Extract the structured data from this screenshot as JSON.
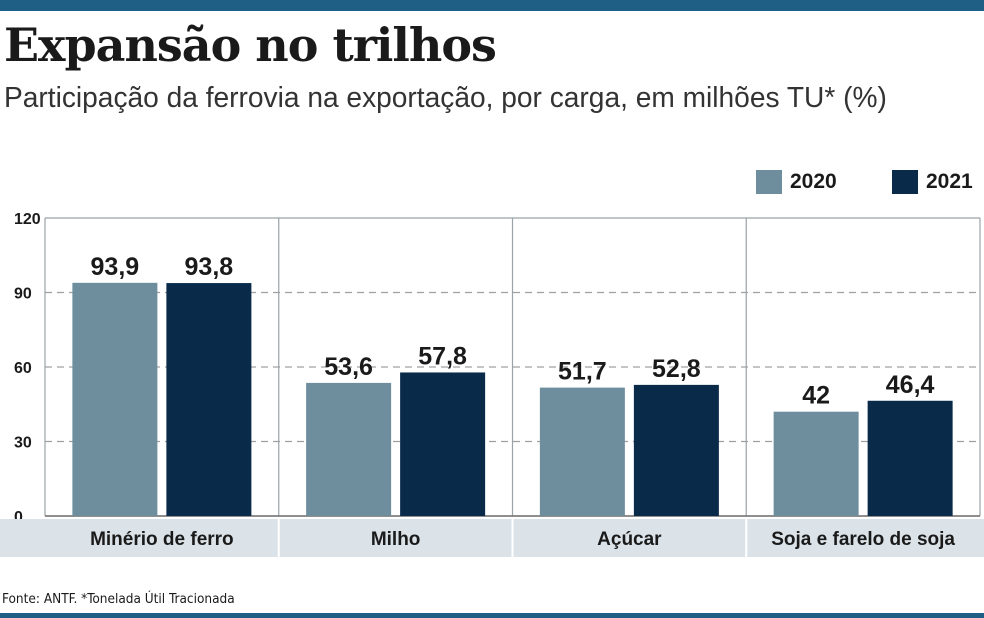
{
  "title": "Expansão no trilhos",
  "subtitle": "Participação da ferrovia na exportação, por carga, em milhões TU* (%)",
  "source": "Fonte: ANTF. *Tonelada Útil Tracionada",
  "colors": {
    "brand_rule": "#1f5f86",
    "series_2020": "#6e8e9e",
    "series_2021": "#0a2a4a",
    "category_band": "#dce3e8"
  },
  "chart_data": {
    "type": "bar",
    "title": "Expansão no trilhos",
    "subtitle": "Participação da ferrovia na exportação, por carga, em milhões TU* (%)",
    "categories": [
      "Minério de ferro",
      "Milho",
      "Açúcar",
      "Soja e farelo de soja"
    ],
    "series": [
      {
        "name": "2020",
        "values": [
          93.9,
          53.6,
          51.7,
          42
        ],
        "labels": [
          "93,9",
          "53,6",
          "51,7",
          "42"
        ]
      },
      {
        "name": "2021",
        "values": [
          93.8,
          57.8,
          52.8,
          46.4
        ],
        "labels": [
          "93,8",
          "57,8",
          "52,8",
          "46,4"
        ]
      }
    ],
    "y_ticks": [
      0,
      30,
      60,
      90,
      120
    ],
    "ylim": [
      0,
      120
    ],
    "xlabel": "",
    "ylabel": "",
    "grid": true,
    "legend": "top-right"
  }
}
